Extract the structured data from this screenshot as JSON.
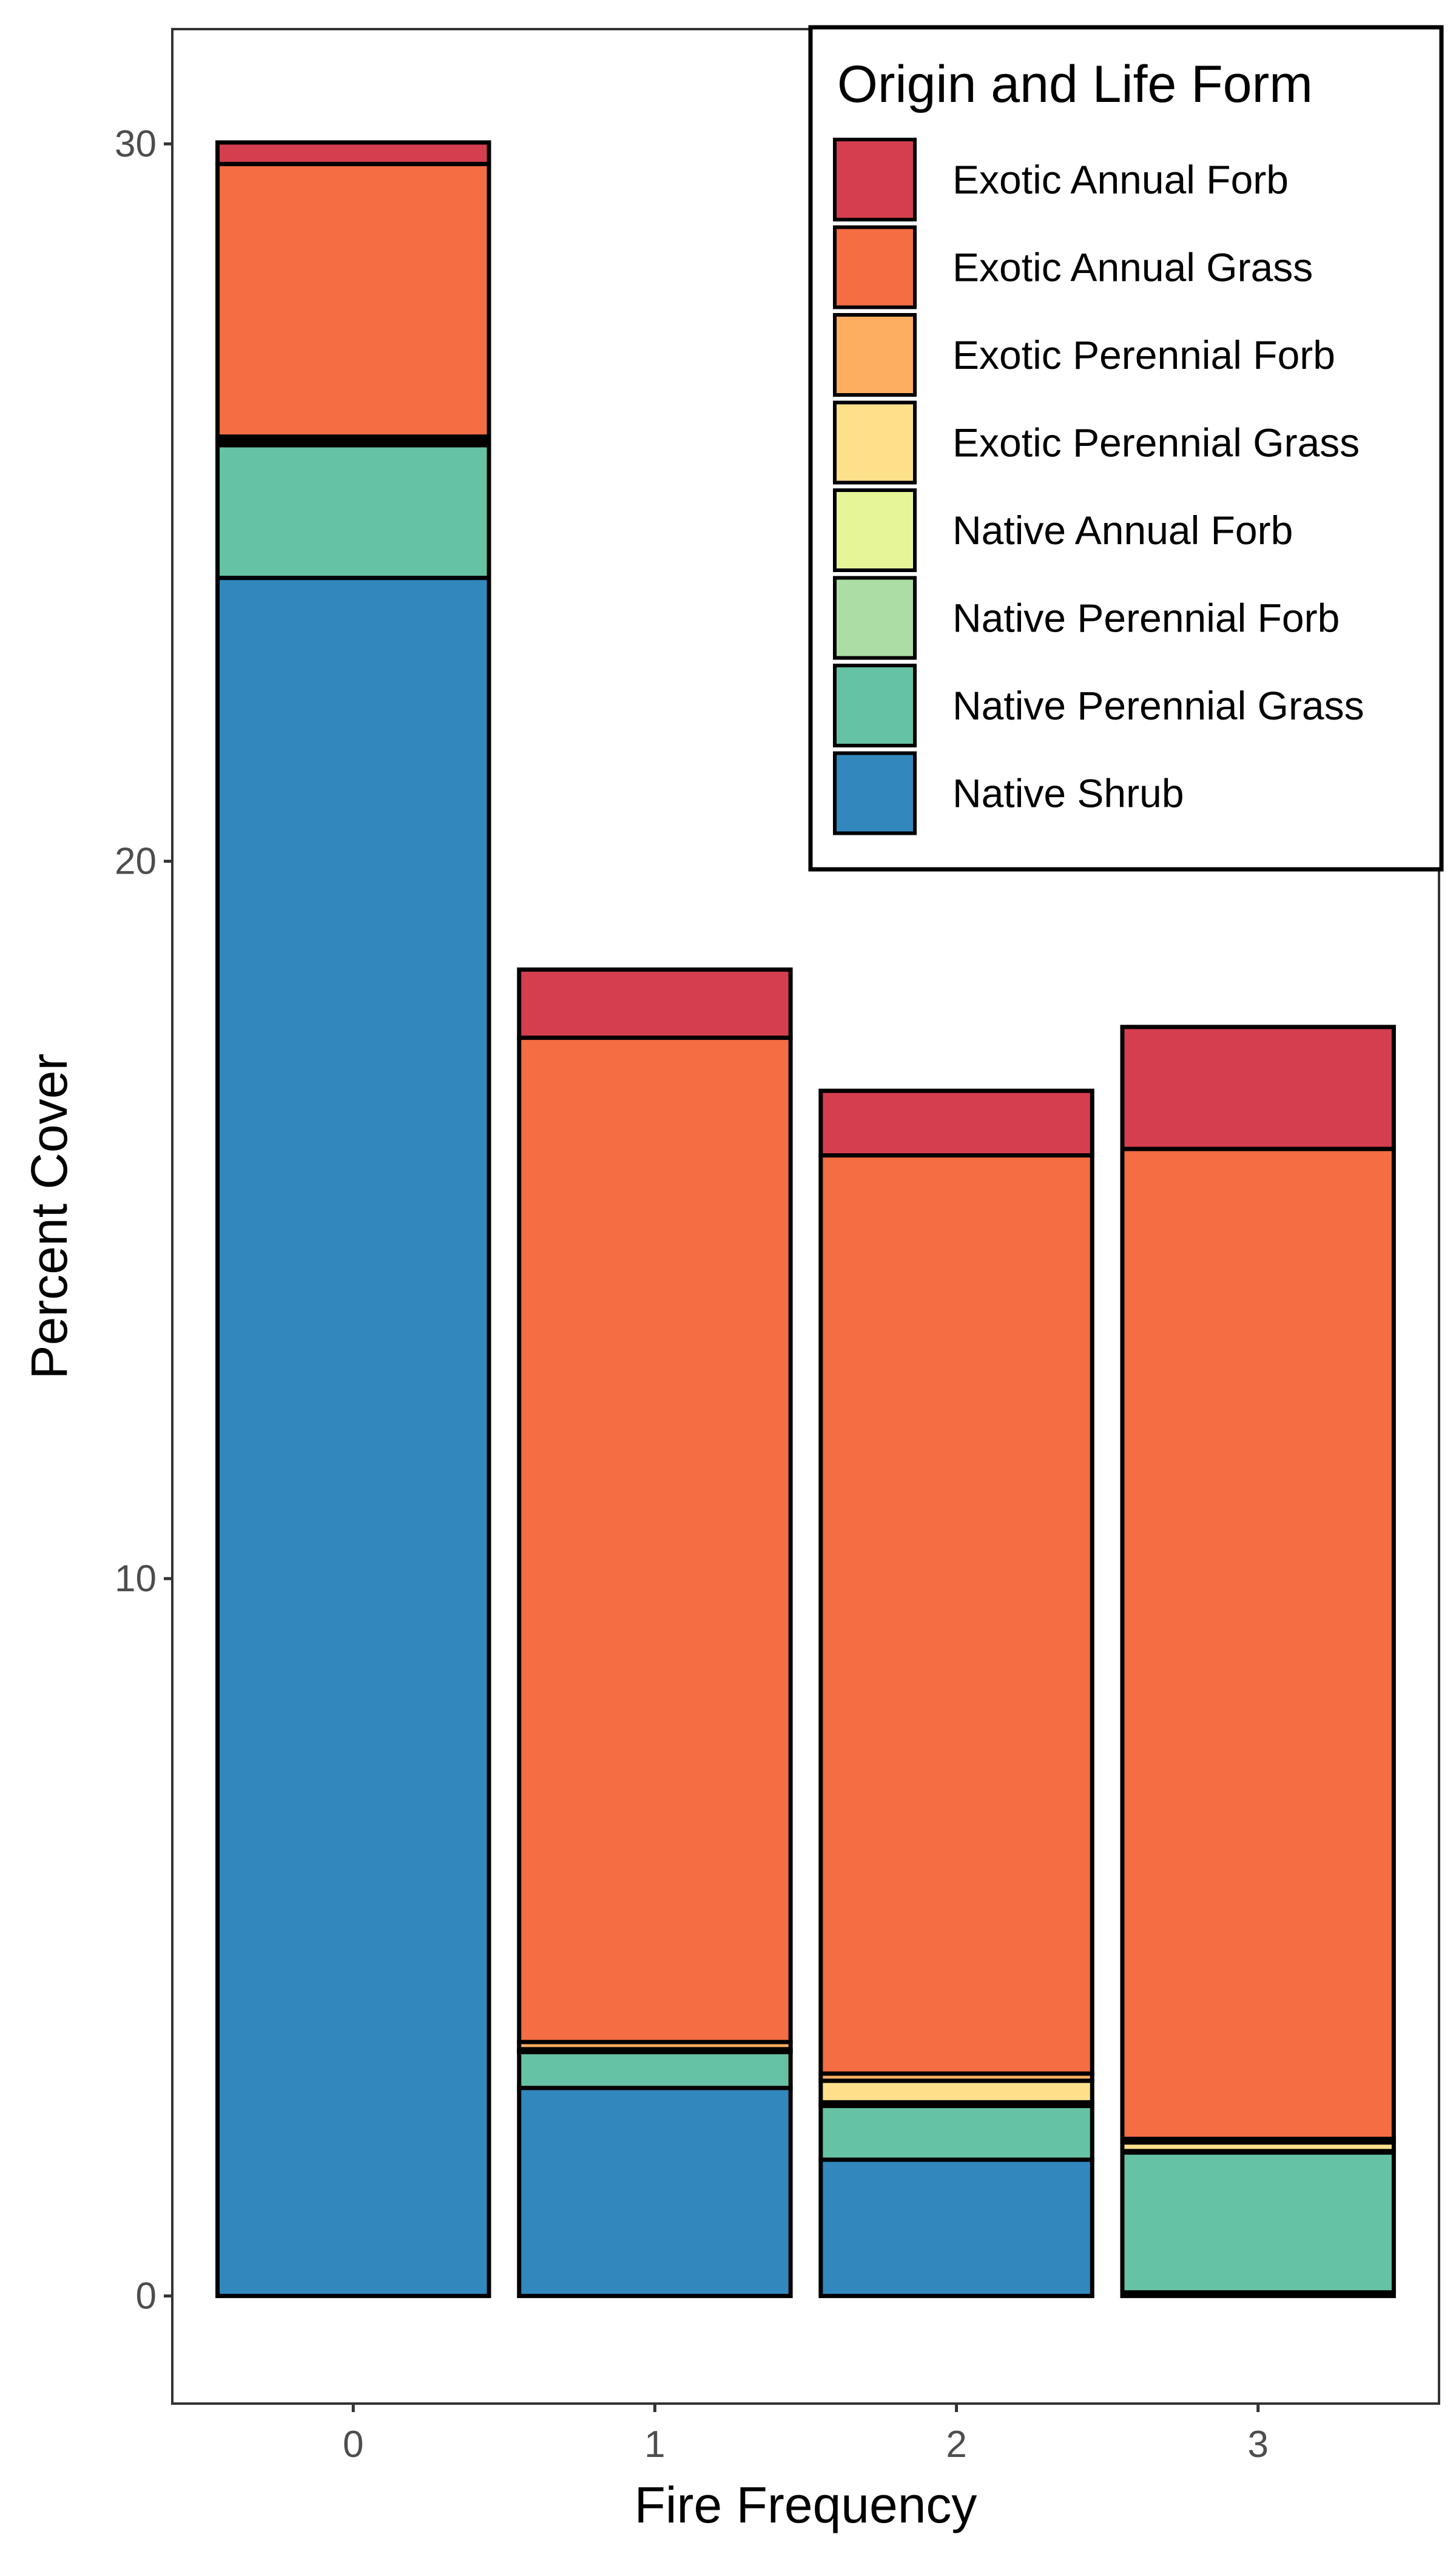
{
  "chart_data": {
    "type": "bar",
    "stacked": true,
    "xlabel": "Fire Frequency",
    "ylabel": "Percent Cover",
    "categories": [
      "0",
      "1",
      "2",
      "3"
    ],
    "ylim": [
      -1.5,
      31.6
    ],
    "yticks": [
      0,
      10,
      20,
      30
    ],
    "grid": false,
    "legend": {
      "title": "Origin and Life Form",
      "position": "top-right"
    },
    "series": [
      {
        "name": "Native Shrub",
        "color": "#3288BD",
        "values": [
          23.95,
          2.9,
          1.9,
          0.05
        ]
      },
      {
        "name": "Native Perennial Grass",
        "color": "#66C2A5",
        "values": [
          1.85,
          0.5,
          0.75,
          1.95
        ]
      },
      {
        "name": "Native Perennial Forb",
        "color": "#ABDDA4",
        "values": [
          0.05,
          0.02,
          0.05,
          0.02
        ]
      },
      {
        "name": "Native Annual Forb",
        "color": "#E6F598",
        "values": [
          0.0,
          0.0,
          0.0,
          0.0
        ]
      },
      {
        "name": "Exotic Perennial Grass",
        "color": "#FEE08B",
        "values": [
          0.02,
          0.02,
          0.3,
          0.12
        ]
      },
      {
        "name": "Exotic Perennial Forb",
        "color": "#FDAE61",
        "values": [
          0.05,
          0.1,
          0.1,
          0.05
        ]
      },
      {
        "name": "Exotic Annual Grass",
        "color": "#F46D43",
        "values": [
          3.8,
          14.0,
          12.8,
          13.8
        ]
      },
      {
        "name": "Exotic Annual Forb",
        "color": "#D53E4F",
        "values": [
          0.3,
          0.95,
          0.9,
          1.7
        ]
      }
    ]
  }
}
